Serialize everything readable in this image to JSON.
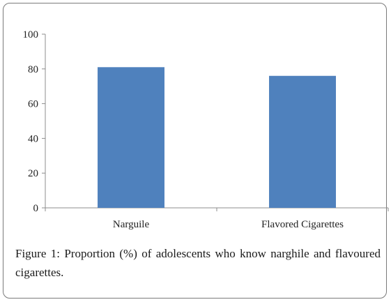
{
  "chart_data": {
    "type": "bar",
    "categories": [
      "Narguile",
      "Flavored Cigarettes"
    ],
    "values": [
      81,
      76
    ],
    "title": "",
    "xlabel": "",
    "ylabel": "",
    "ylim": [
      0,
      100
    ],
    "yticks": [
      "0",
      "20",
      "40",
      "60",
      "80",
      "100"
    ],
    "bar_color": "#4f81bd",
    "grid": false,
    "legend": "none"
  },
  "caption": {
    "label": "Figure 1:",
    "text": " Proportion (%) of adolescents who know narghile and flavoured cigarettes."
  }
}
